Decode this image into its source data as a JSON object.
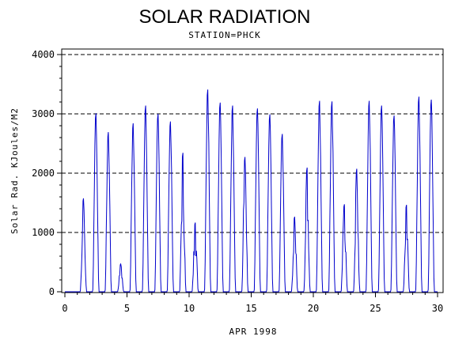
{
  "chart_data": {
    "type": "line",
    "title": "SOLAR RADIATION",
    "subtitle": "STATION=PHCK",
    "xlabel": "APR 1998",
    "ylabel": "Solar Rad. KJoules/M2",
    "xlim": [
      0,
      30
    ],
    "ylim": [
      0,
      4000
    ],
    "xticks": [
      0,
      5,
      10,
      15,
      20,
      25,
      30
    ],
    "yticks": [
      0,
      1000,
      2000,
      3000,
      4000
    ],
    "grid": "horizontal dashed",
    "line_color": "#0000cc",
    "daily_peaks": [
      {
        "day": 1,
        "peak": 1580
      },
      {
        "day": 2,
        "peak": 3020
      },
      {
        "day": 3,
        "peak": 2700
      },
      {
        "day": 4,
        "peak": 470
      },
      {
        "day": 5,
        "peak": 2850
      },
      {
        "day": 6,
        "peak": 3150
      },
      {
        "day": 7,
        "peak": 3010
      },
      {
        "day": 8,
        "peak": 2880
      },
      {
        "day": 9,
        "peak": 2350
      },
      {
        "day": 10,
        "peak": 1170
      },
      {
        "day": 11,
        "peak": 3420
      },
      {
        "day": 12,
        "peak": 3200
      },
      {
        "day": 13,
        "peak": 3150
      },
      {
        "day": 14,
        "peak": 2280
      },
      {
        "day": 15,
        "peak": 3100
      },
      {
        "day": 16,
        "peak": 3000
      },
      {
        "day": 17,
        "peak": 2670
      },
      {
        "day": 18,
        "peak": 1270
      },
      {
        "day": 19,
        "peak": 2100
      },
      {
        "day": 20,
        "peak": 3230
      },
      {
        "day": 21,
        "peak": 3220
      },
      {
        "day": 22,
        "peak": 1480
      },
      {
        "day": 23,
        "peak": 2080
      },
      {
        "day": 24,
        "peak": 3230
      },
      {
        "day": 25,
        "peak": 3150
      },
      {
        "day": 26,
        "peak": 2980
      },
      {
        "day": 27,
        "peak": 1470
      },
      {
        "day": 28,
        "peak": 3300
      },
      {
        "day": 29,
        "peak": 3250
      }
    ]
  }
}
